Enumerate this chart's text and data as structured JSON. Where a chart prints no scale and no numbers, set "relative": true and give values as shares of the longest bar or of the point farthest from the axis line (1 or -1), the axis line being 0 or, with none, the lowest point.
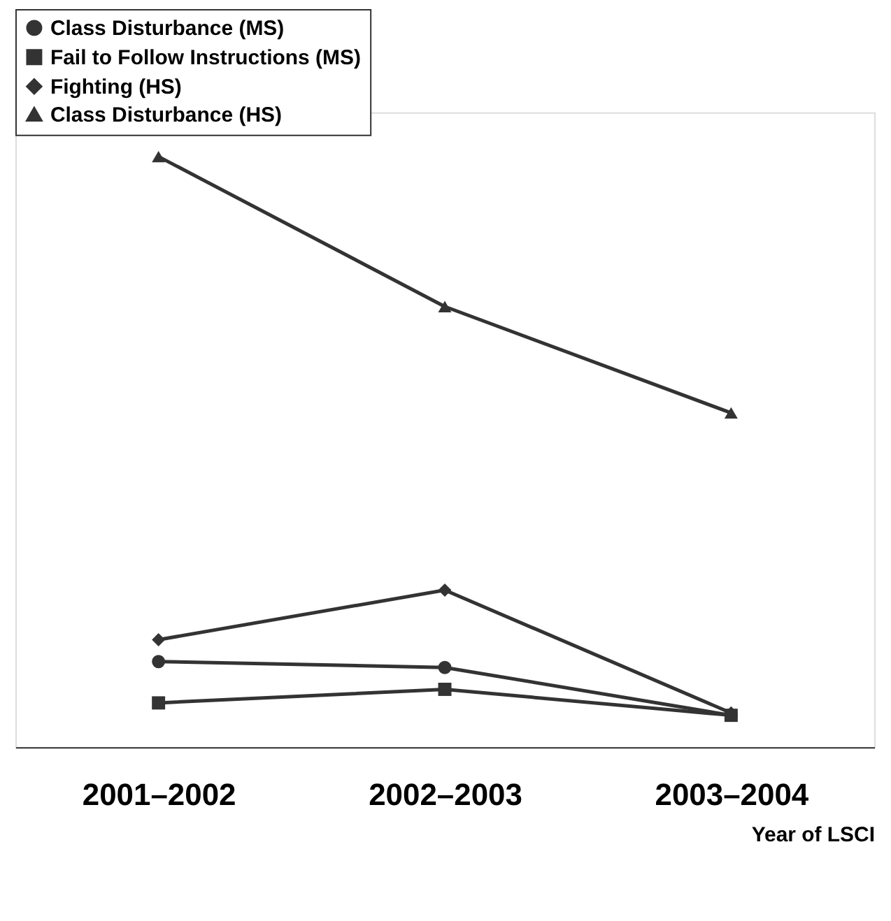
{
  "chart_data": {
    "type": "line",
    "relative": true,
    "xlabel": "Year of LSCI",
    "categories": [
      "2001–2002",
      "2002–2003",
      "2003–2004"
    ],
    "legend": "top",
    "grid": false,
    "series": [
      {
        "name": "Class Disturbance (MS)",
        "color": "#333333",
        "marker": "circle",
        "values": [
          0.145,
          0.135,
          0.054
        ]
      },
      {
        "name": "Fail to Follow Instructions (MS)",
        "color": "#333333",
        "marker": "square",
        "values": [
          0.075,
          0.098,
          0.054
        ]
      },
      {
        "name": "Fighting (HS)",
        "color": "#333333",
        "marker": "diamond",
        "values": [
          0.182,
          0.266,
          0.058
        ]
      },
      {
        "name": "Class Disturbance (HS)",
        "color": "#333333",
        "marker": "triangle",
        "values": [
          1,
          0.746,
          0.566
        ]
      }
    ]
  }
}
